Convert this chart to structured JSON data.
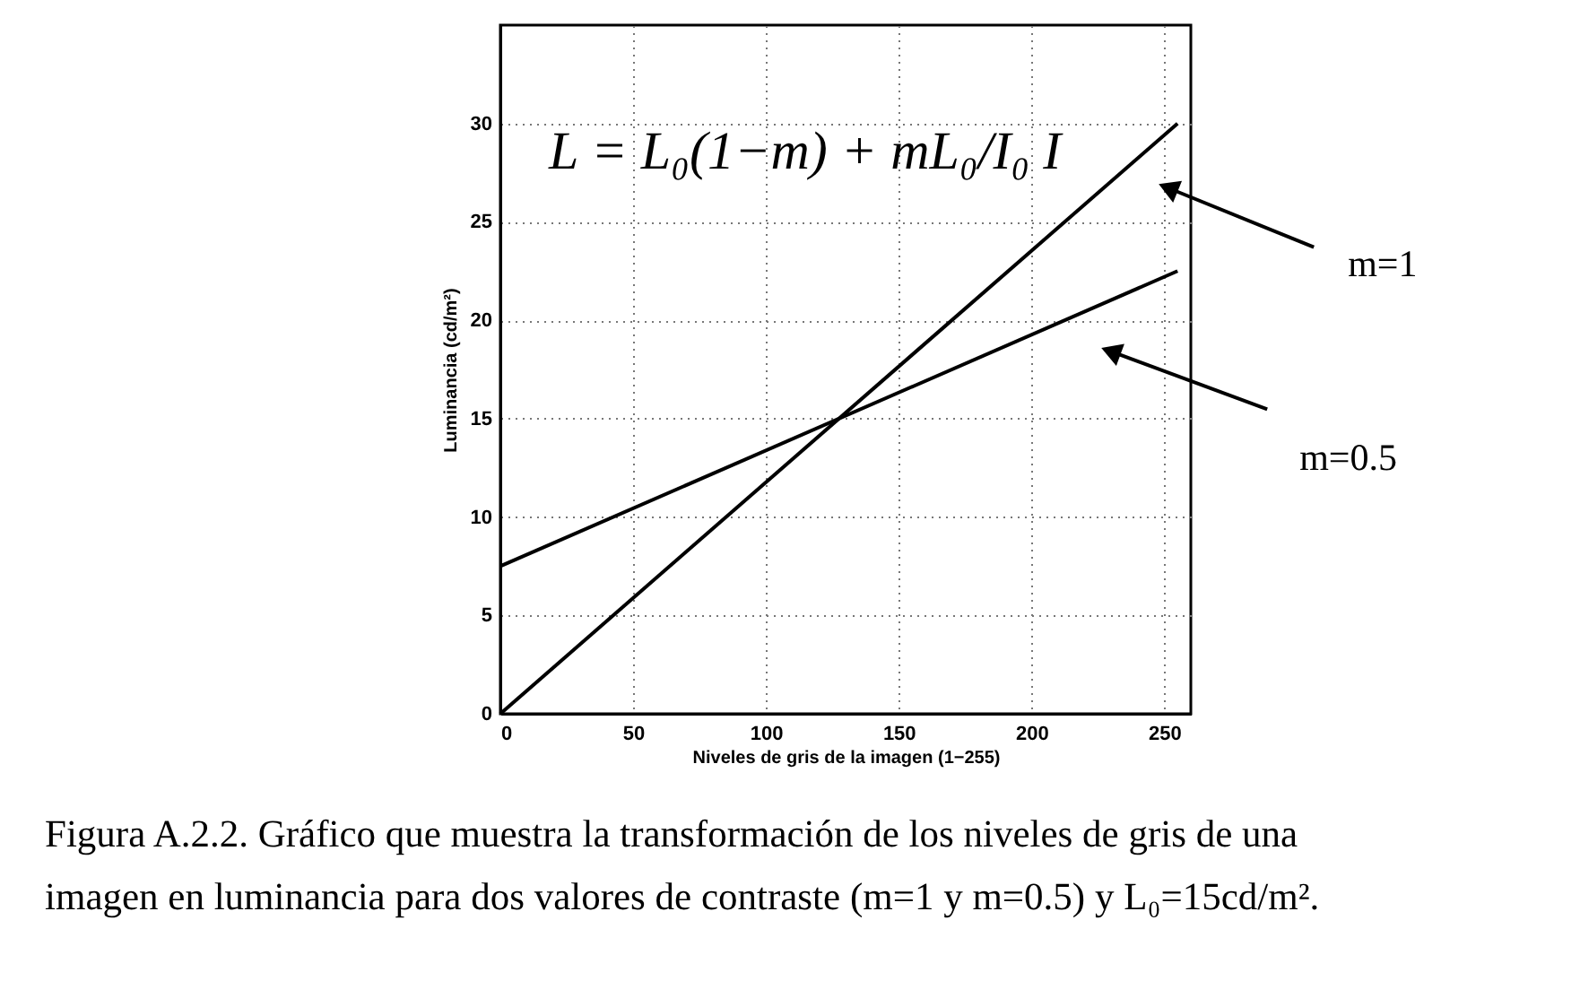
{
  "chart_data": {
    "type": "line",
    "xlabel": "Niveles de gris de la imagen (1−255)",
    "ylabel": "Luminancia (cd/m²)",
    "x": [
      0,
      255
    ],
    "series": [
      {
        "name": "m=1",
        "color": "#000000",
        "values": [
          0,
          30
        ]
      },
      {
        "name": "m=0.5",
        "color": "#000000",
        "values": [
          7.5,
          22.5
        ]
      }
    ],
    "xlim": [
      0,
      260
    ],
    "ylim": [
      0,
      35
    ],
    "xticks": [
      0,
      50,
      100,
      150,
      200,
      250
    ],
    "yticks": [
      0,
      5,
      10,
      15,
      20,
      25,
      30
    ],
    "grid": true,
    "line_style": "solid",
    "annotations": [
      "L = L₀(1−m) + mL₀/I₀ I",
      "Figura A.2.2. Gráfico que muestra la transformación de los niveles de gris de una imagen en luminancia para dos valores de contraste (m=1 y m=0.5) y L₀=15cd/m²."
    ]
  }
}
